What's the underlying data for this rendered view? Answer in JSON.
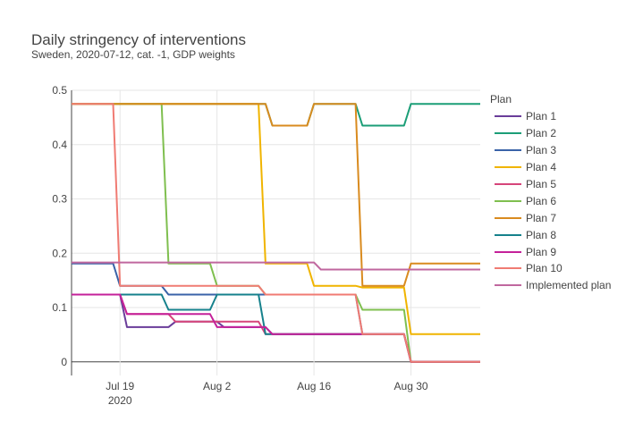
{
  "title": "Daily stringency of interventions",
  "subtitle": "Sweden, 2020-07-12, cat. -1, GDP weights",
  "legend_title": "Plan",
  "chart_data": {
    "type": "line",
    "title": "Daily stringency of interventions",
    "subtitle": "Sweden, 2020-07-12, cat. -1, GDP weights",
    "xlabel": "",
    "ylabel": "",
    "xlim": [
      "2020-07-12",
      "2020-09-09"
    ],
    "ylim": [
      -0.025,
      0.5
    ],
    "x_ticks": [
      {
        "date": "2020-07-19",
        "label": "Jul 19",
        "sublabel": "2020"
      },
      {
        "date": "2020-08-02",
        "label": "Aug 2",
        "sublabel": ""
      },
      {
        "date": "2020-08-16",
        "label": "Aug 16",
        "sublabel": ""
      },
      {
        "date": "2020-08-30",
        "label": "Aug 30",
        "sublabel": ""
      }
    ],
    "y_ticks": [
      {
        "value": 0,
        "label": "0"
      },
      {
        "value": 0.1,
        "label": "0.1"
      },
      {
        "value": 0.2,
        "label": "0.2"
      },
      {
        "value": 0.3,
        "label": "0.3"
      },
      {
        "value": 0.4,
        "label": "0.4"
      },
      {
        "value": 0.5,
        "label": "0.5"
      }
    ],
    "grid": true,
    "legend_position": "right",
    "series": [
      {
        "name": "Plan 1",
        "color": "#6a3d9a",
        "points": [
          [
            "2020-07-12",
            0.124
          ],
          [
            "2020-07-19",
            0.124
          ],
          [
            "2020-07-20",
            0.064
          ],
          [
            "2020-07-26",
            0.064
          ],
          [
            "2020-07-27",
            0.074
          ],
          [
            "2020-08-02",
            0.074
          ],
          [
            "2020-08-03",
            0.064
          ],
          [
            "2020-08-09",
            0.064
          ],
          [
            "2020-08-10",
            0.051
          ],
          [
            "2020-08-29",
            0.051
          ],
          [
            "2020-08-30",
            0.0
          ],
          [
            "2020-09-09",
            0.0
          ]
        ]
      },
      {
        "name": "Plan 2",
        "color": "#1b9e77",
        "points": [
          [
            "2020-07-12",
            0.475
          ],
          [
            "2020-08-09",
            0.475
          ],
          [
            "2020-08-10",
            0.435
          ],
          [
            "2020-08-15",
            0.435
          ],
          [
            "2020-08-16",
            0.475
          ],
          [
            "2020-08-22",
            0.475
          ],
          [
            "2020-08-23",
            0.435
          ],
          [
            "2020-08-29",
            0.435
          ],
          [
            "2020-08-30",
            0.475
          ],
          [
            "2020-09-09",
            0.475
          ]
        ]
      },
      {
        "name": "Plan 3",
        "color": "#3a63a8",
        "points": [
          [
            "2020-07-12",
            0.181
          ],
          [
            "2020-07-18",
            0.181
          ],
          [
            "2020-07-19",
            0.14
          ],
          [
            "2020-07-25",
            0.14
          ],
          [
            "2020-07-26",
            0.124
          ],
          [
            "2020-08-09",
            0.124
          ],
          [
            "2020-08-10",
            0.124
          ],
          [
            "2020-08-22",
            0.124
          ],
          [
            "2020-08-23",
            0.051
          ],
          [
            "2020-08-29",
            0.051
          ],
          [
            "2020-08-30",
            0.0
          ],
          [
            "2020-09-09",
            0.0
          ]
        ]
      },
      {
        "name": "Plan 4",
        "color": "#f0b400",
        "points": [
          [
            "2020-07-12",
            0.475
          ],
          [
            "2020-08-08",
            0.475
          ],
          [
            "2020-08-09",
            0.181
          ],
          [
            "2020-08-15",
            0.181
          ],
          [
            "2020-08-16",
            0.14
          ],
          [
            "2020-08-22",
            0.14
          ],
          [
            "2020-08-23",
            0.137
          ],
          [
            "2020-08-29",
            0.137
          ],
          [
            "2020-08-30",
            0.051
          ],
          [
            "2020-09-09",
            0.051
          ]
        ]
      },
      {
        "name": "Plan 5",
        "color": "#d6457a",
        "points": [
          [
            "2020-07-12",
            0.124
          ],
          [
            "2020-07-19",
            0.124
          ],
          [
            "2020-07-20",
            0.088
          ],
          [
            "2020-07-26",
            0.088
          ],
          [
            "2020-07-27",
            0.074
          ],
          [
            "2020-08-08",
            0.074
          ],
          [
            "2020-08-09",
            0.051
          ],
          [
            "2020-08-29",
            0.051
          ],
          [
            "2020-08-30",
            0.0
          ],
          [
            "2020-09-09",
            0.0
          ]
        ]
      },
      {
        "name": "Plan 6",
        "color": "#7fbf4f",
        "points": [
          [
            "2020-07-12",
            0.475
          ],
          [
            "2020-07-25",
            0.475
          ],
          [
            "2020-07-26",
            0.181
          ],
          [
            "2020-08-01",
            0.181
          ],
          [
            "2020-08-02",
            0.14
          ],
          [
            "2020-08-08",
            0.14
          ],
          [
            "2020-08-09",
            0.124
          ],
          [
            "2020-08-22",
            0.124
          ],
          [
            "2020-08-23",
            0.096
          ],
          [
            "2020-08-29",
            0.096
          ],
          [
            "2020-08-30",
            0.0
          ],
          [
            "2020-09-09",
            0.0
          ]
        ]
      },
      {
        "name": "Plan 7",
        "color": "#d98b1f",
        "points": [
          [
            "2020-07-12",
            0.475
          ],
          [
            "2020-08-09",
            0.475
          ],
          [
            "2020-08-10",
            0.435
          ],
          [
            "2020-08-15",
            0.435
          ],
          [
            "2020-08-16",
            0.475
          ],
          [
            "2020-08-22",
            0.475
          ],
          [
            "2020-08-23",
            0.14
          ],
          [
            "2020-08-29",
            0.14
          ],
          [
            "2020-08-30",
            0.181
          ],
          [
            "2020-09-09",
            0.181
          ]
        ]
      },
      {
        "name": "Plan 8",
        "color": "#16818c",
        "points": [
          [
            "2020-07-12",
            0.124
          ],
          [
            "2020-07-25",
            0.124
          ],
          [
            "2020-07-26",
            0.096
          ],
          [
            "2020-08-01",
            0.096
          ],
          [
            "2020-08-02",
            0.124
          ],
          [
            "2020-08-08",
            0.124
          ],
          [
            "2020-08-09",
            0.051
          ],
          [
            "2020-08-29",
            0.051
          ],
          [
            "2020-08-30",
            0.0
          ],
          [
            "2020-09-09",
            0.0
          ]
        ]
      },
      {
        "name": "Plan 9",
        "color": "#c4219a",
        "points": [
          [
            "2020-07-12",
            0.124
          ],
          [
            "2020-07-19",
            0.124
          ],
          [
            "2020-07-20",
            0.088
          ],
          [
            "2020-08-01",
            0.088
          ],
          [
            "2020-08-02",
            0.064
          ],
          [
            "2020-08-09",
            0.064
          ],
          [
            "2020-08-10",
            0.051
          ],
          [
            "2020-08-29",
            0.051
          ],
          [
            "2020-08-30",
            0.0
          ],
          [
            "2020-09-09",
            0.0
          ]
        ]
      },
      {
        "name": "Plan 10",
        "color": "#f07b73",
        "points": [
          [
            "2020-07-12",
            0.475
          ],
          [
            "2020-07-18",
            0.475
          ],
          [
            "2020-07-19",
            0.14
          ],
          [
            "2020-08-08",
            0.14
          ],
          [
            "2020-08-09",
            0.124
          ],
          [
            "2020-08-22",
            0.124
          ],
          [
            "2020-08-23",
            0.051
          ],
          [
            "2020-08-29",
            0.051
          ],
          [
            "2020-08-30",
            0.0
          ],
          [
            "2020-09-09",
            0.0
          ]
        ]
      },
      {
        "name": "Implemented plan",
        "color": "#c0679f",
        "points": [
          [
            "2020-07-12",
            0.183
          ],
          [
            "2020-08-16",
            0.183
          ],
          [
            "2020-08-17",
            0.17
          ],
          [
            "2020-09-09",
            0.17
          ]
        ]
      }
    ]
  }
}
